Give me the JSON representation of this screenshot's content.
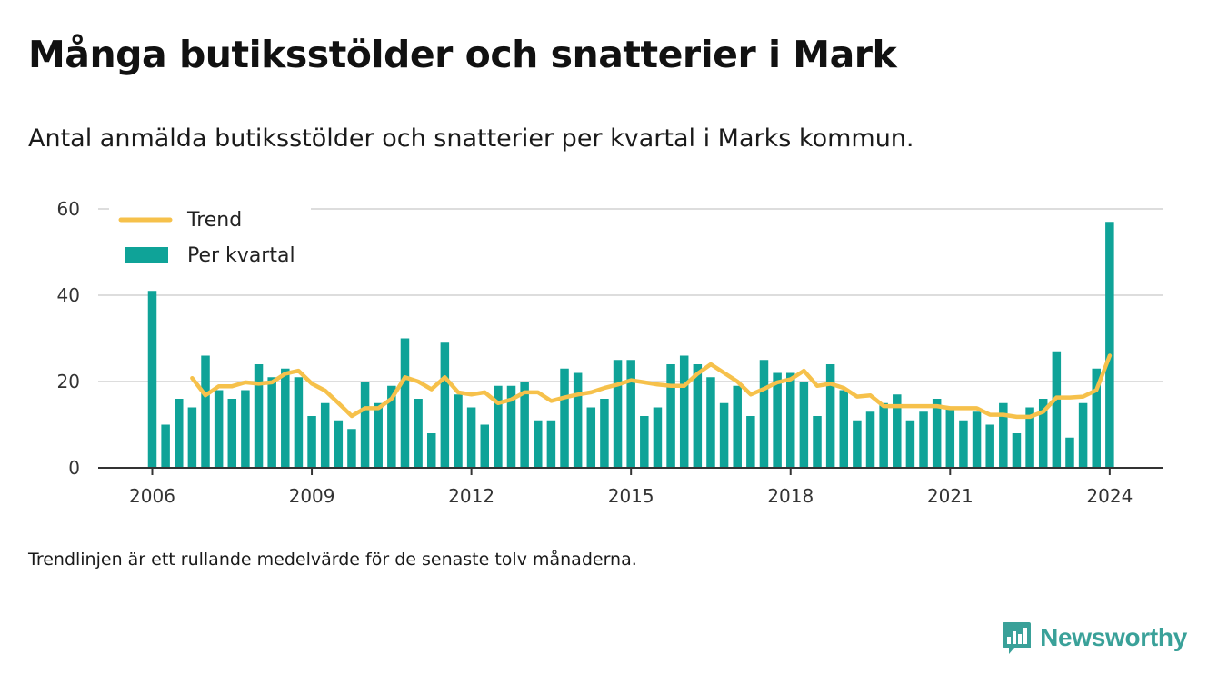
{
  "header": {
    "title": "Många butiksstölder och snatterier i Mark",
    "subtitle": "Antal anmälda butiksstölder och snatterier per kvartal i Marks kommun."
  },
  "footer": {
    "note": "Trendlinjen är ett rullande medelvärde för de senaste tolv månaderna.",
    "brand": "Newsworthy"
  },
  "colors": {
    "bar": "#0fa398",
    "trend": "#f6c14b",
    "grid": "#dddddd",
    "axis": "#333333",
    "brand": "#3aa199"
  },
  "chart_data": {
    "type": "bar",
    "title": "Många butiksstölder och snatterier i Mark",
    "subtitle": "Antal anmälda butiksstölder och snatterier per kvartal i Marks kommun.",
    "xlabel": "",
    "ylabel": "",
    "x_start": "2006-Q1",
    "x_ticks": [
      "2006",
      "2009",
      "2012",
      "2015",
      "2018",
      "2021",
      "2024"
    ],
    "y_ticks": [
      0,
      20,
      40,
      60
    ],
    "ylim": [
      0,
      60
    ],
    "grid": true,
    "legend_position": "top-left",
    "series": [
      {
        "name": "Per kvartal",
        "type": "bar",
        "values": [
          41,
          10,
          16,
          14,
          26,
          18,
          16,
          18,
          24,
          21,
          23,
          21,
          12,
          15,
          11,
          9,
          20,
          15,
          19,
          30,
          16,
          8,
          29,
          17,
          14,
          10,
          19,
          19,
          20,
          11,
          11,
          23,
          22,
          14,
          16,
          25,
          25,
          12,
          14,
          24,
          26,
          24,
          21,
          15,
          19,
          12,
          25,
          22,
          22,
          20,
          12,
          24,
          18,
          11,
          13,
          15,
          17,
          11,
          13,
          16,
          14,
          11,
          13,
          10,
          15,
          8,
          14,
          16,
          27,
          7,
          15,
          23,
          57
        ]
      },
      {
        "name": "Trend",
        "type": "line",
        "start_index": 3,
        "values": [
          20.8,
          16.8,
          18.9,
          18.9,
          19.8,
          19.5,
          19.8,
          21.8,
          22.5,
          19.5,
          17.9,
          15,
          12,
          13.8,
          13.8,
          16,
          21,
          20,
          18.2,
          21,
          17.5,
          17,
          17.5,
          15,
          15.8,
          17.5,
          17.5,
          15.5,
          16.3,
          17,
          17.5,
          18.5,
          19.3,
          20.3,
          19.8,
          19.3,
          19,
          19,
          21.8,
          24,
          22,
          20,
          17,
          18.3,
          19.8,
          20.5,
          22.5,
          19,
          19.5,
          18.5,
          16.5,
          16.8,
          14.3,
          14.3,
          14.3,
          14.3,
          14.3,
          13.8,
          13.8,
          13.8,
          12.3,
          12.3,
          11.8,
          11.8,
          13,
          16.3,
          16.3,
          16.5,
          18,
          26
        ]
      }
    ]
  }
}
